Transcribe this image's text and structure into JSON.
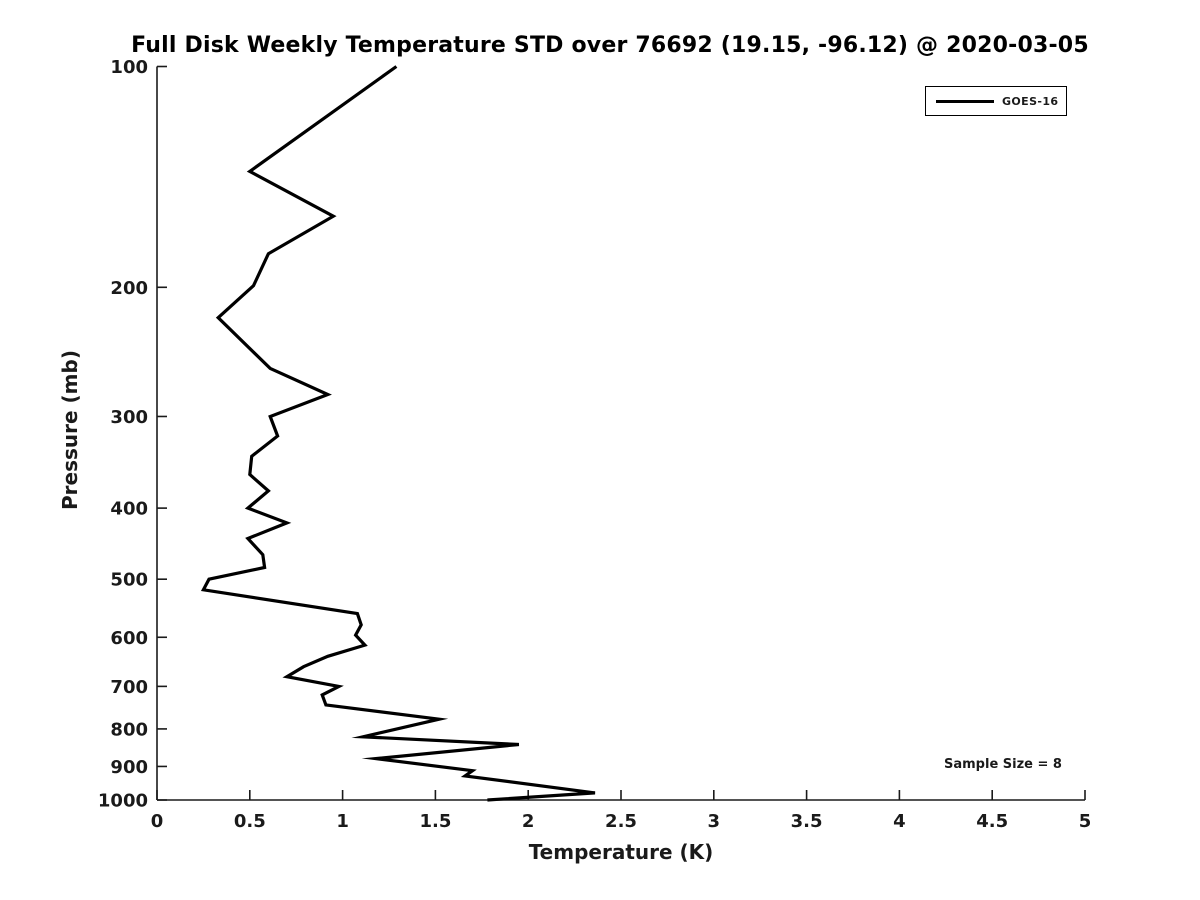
{
  "title": "Full Disk Weekly Temperature STD over 76692 (19.15, -96.12) @ 2020-03-05",
  "legend": {
    "label": "GOES-16",
    "line_color": "#000000"
  },
  "annotation": {
    "sample_size_label": "Sample Size = 8"
  },
  "colors": {
    "background": "#ffffff",
    "axis": "#1a1a1a",
    "tick_label": "#1a1a1a",
    "series": "#000000"
  },
  "chart_data": {
    "type": "line",
    "title": "Full Disk Weekly Temperature STD over 76692 (19.15, -96.12) @ 2020-03-05",
    "xlabel": "Temperature (K)",
    "ylabel": "Pressure (mb)",
    "xlim": [
      0,
      5
    ],
    "ylim_pressure_mb": [
      100,
      1000
    ],
    "y_scale": "log10-inverted",
    "grid": false,
    "x_ticks": [
      0,
      0.5,
      1,
      1.5,
      2,
      2.5,
      3,
      3.5,
      4,
      4.5,
      5
    ],
    "y_ticks": [
      100,
      200,
      300,
      400,
      500,
      600,
      700,
      800,
      900,
      1000
    ],
    "legend_position": "top-right",
    "annotations": [
      {
        "text": "Sample Size = 8",
        "approx_temp_K": 2.28,
        "approx_pressure_mb": 870
      }
    ],
    "series": [
      {
        "name": "GOES-16",
        "color": "#000000",
        "line_width": 3.2,
        "point_format": [
          "pressure_mb",
          "temp_std_K"
        ],
        "points": [
          [
            100,
            1.29
          ],
          [
            139,
            0.5
          ],
          [
            160,
            0.95
          ],
          [
            180,
            0.6
          ],
          [
            199,
            0.52
          ],
          [
            220,
            0.33
          ],
          [
            258,
            0.61
          ],
          [
            280,
            0.92
          ],
          [
            300,
            0.61
          ],
          [
            319,
            0.65
          ],
          [
            340,
            0.51
          ],
          [
            360,
            0.5
          ],
          [
            379,
            0.6
          ],
          [
            400,
            0.49
          ],
          [
            419,
            0.7
          ],
          [
            440,
            0.49
          ],
          [
            463,
            0.57
          ],
          [
            482,
            0.58
          ],
          [
            500,
            0.28
          ],
          [
            517,
            0.25
          ],
          [
            557,
            1.08
          ],
          [
            577,
            1.1
          ],
          [
            596,
            1.07
          ],
          [
            615,
            1.12
          ],
          [
            637,
            0.92
          ],
          [
            658,
            0.79
          ],
          [
            679,
            0.7
          ],
          [
            700,
            0.98
          ],
          [
            719,
            0.89
          ],
          [
            742,
            0.91
          ],
          [
            776,
            1.52
          ],
          [
            820,
            1.11
          ],
          [
            840,
            1.95
          ],
          [
            878,
            1.18
          ],
          [
            912,
            1.7
          ],
          [
            927,
            1.66
          ],
          [
            978,
            2.36
          ],
          [
            1000,
            1.78
          ]
        ]
      }
    ]
  }
}
